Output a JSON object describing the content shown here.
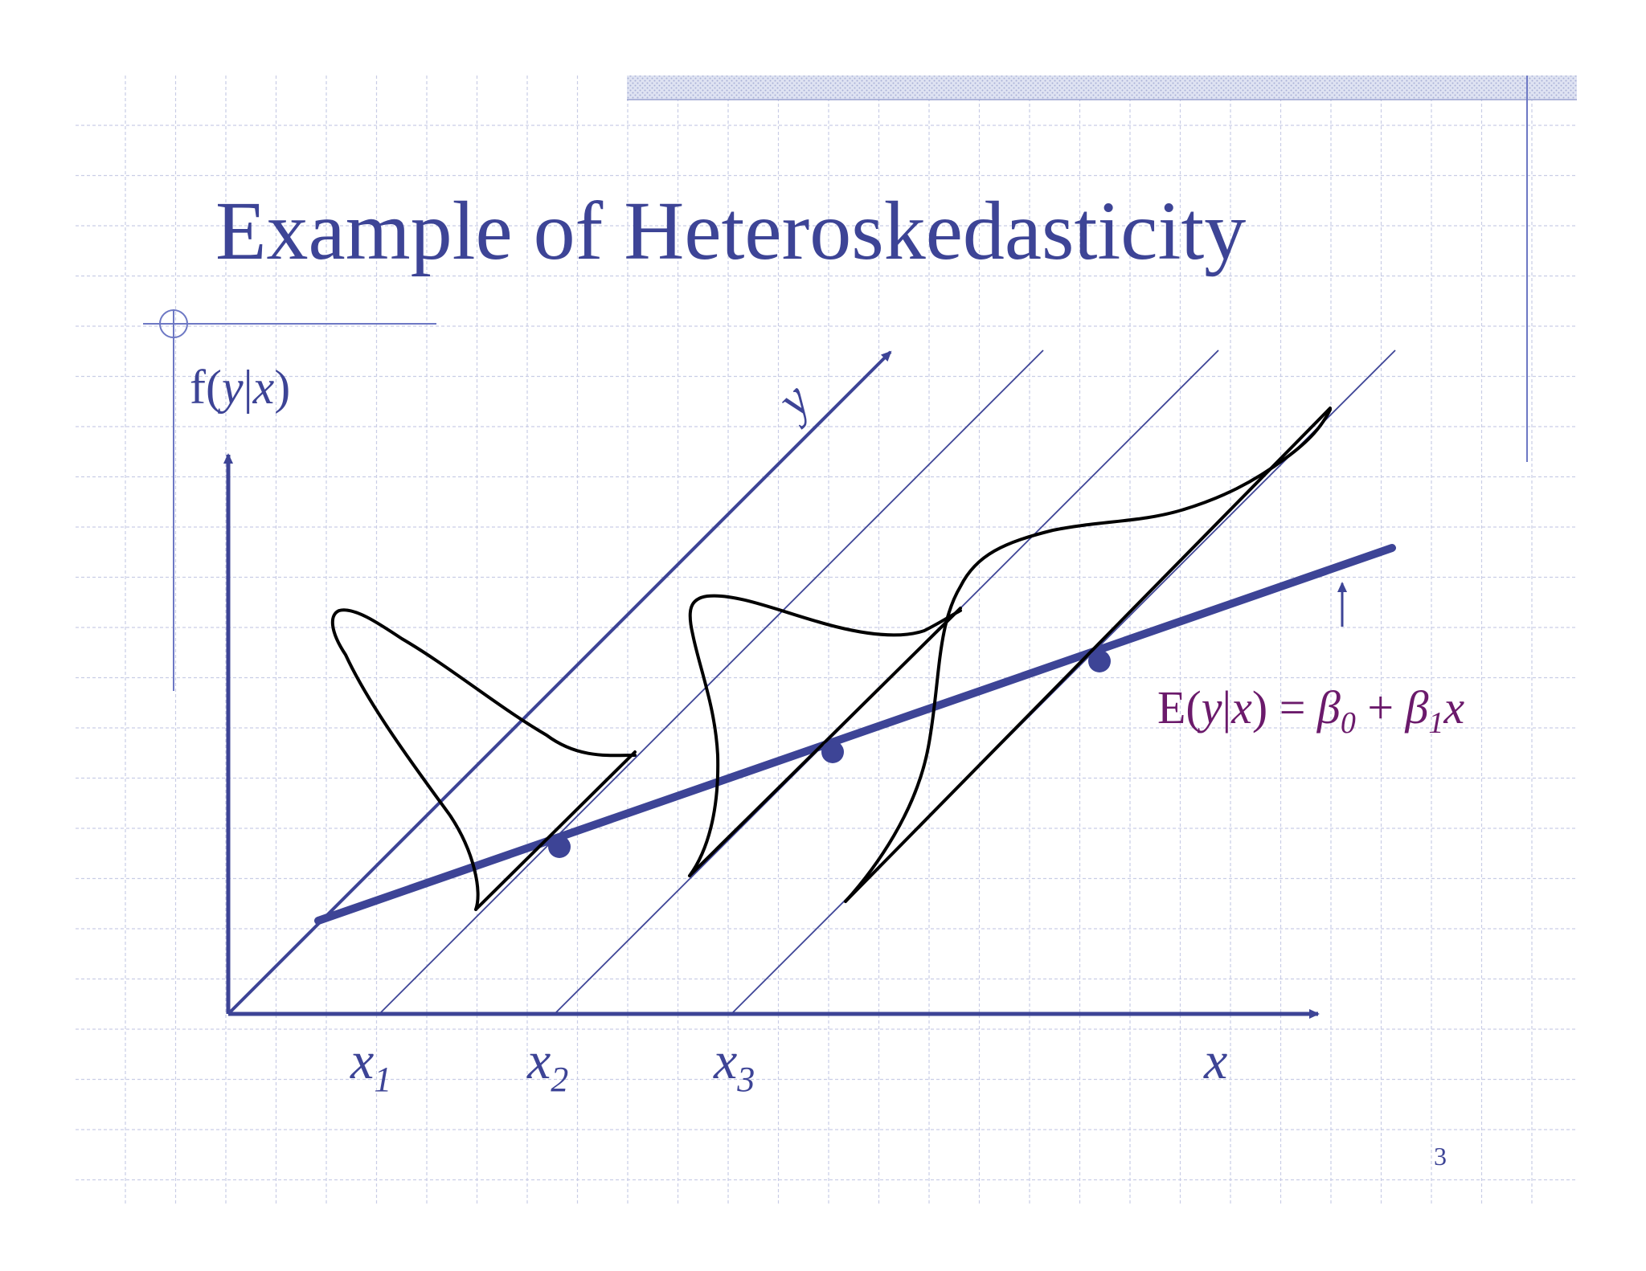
{
  "slide": {
    "title": "Example of Heteroskedasticity",
    "page_number": "3"
  },
  "labels": {
    "density_axis": {
      "f": "f(",
      "y": "y",
      "bar": "|",
      "x": "x",
      "close": ")"
    },
    "y_axis": "y",
    "x_axis": "x",
    "x_ticks": [
      {
        "base": "x",
        "sub": "1"
      },
      {
        "base": "x",
        "sub": "2"
      },
      {
        "base": "x",
        "sub": "3"
      }
    ],
    "regression": {
      "E": "E(",
      "y": "y",
      "bar": "|",
      "x": "x",
      "close": ")",
      "eq": " = ",
      "beta0": "β",
      "sub0": "0",
      "plus": " + ",
      "beta1": "β",
      "sub1": "1",
      "x_end": "x"
    }
  },
  "colors": {
    "title": "#3d4496",
    "axis": "#3d4496",
    "regression_line": "#3d4496",
    "density_curves": "#000000",
    "equation": "#6b1a6b",
    "grid": "#c9cde6",
    "page_number": "#3d4496"
  }
}
